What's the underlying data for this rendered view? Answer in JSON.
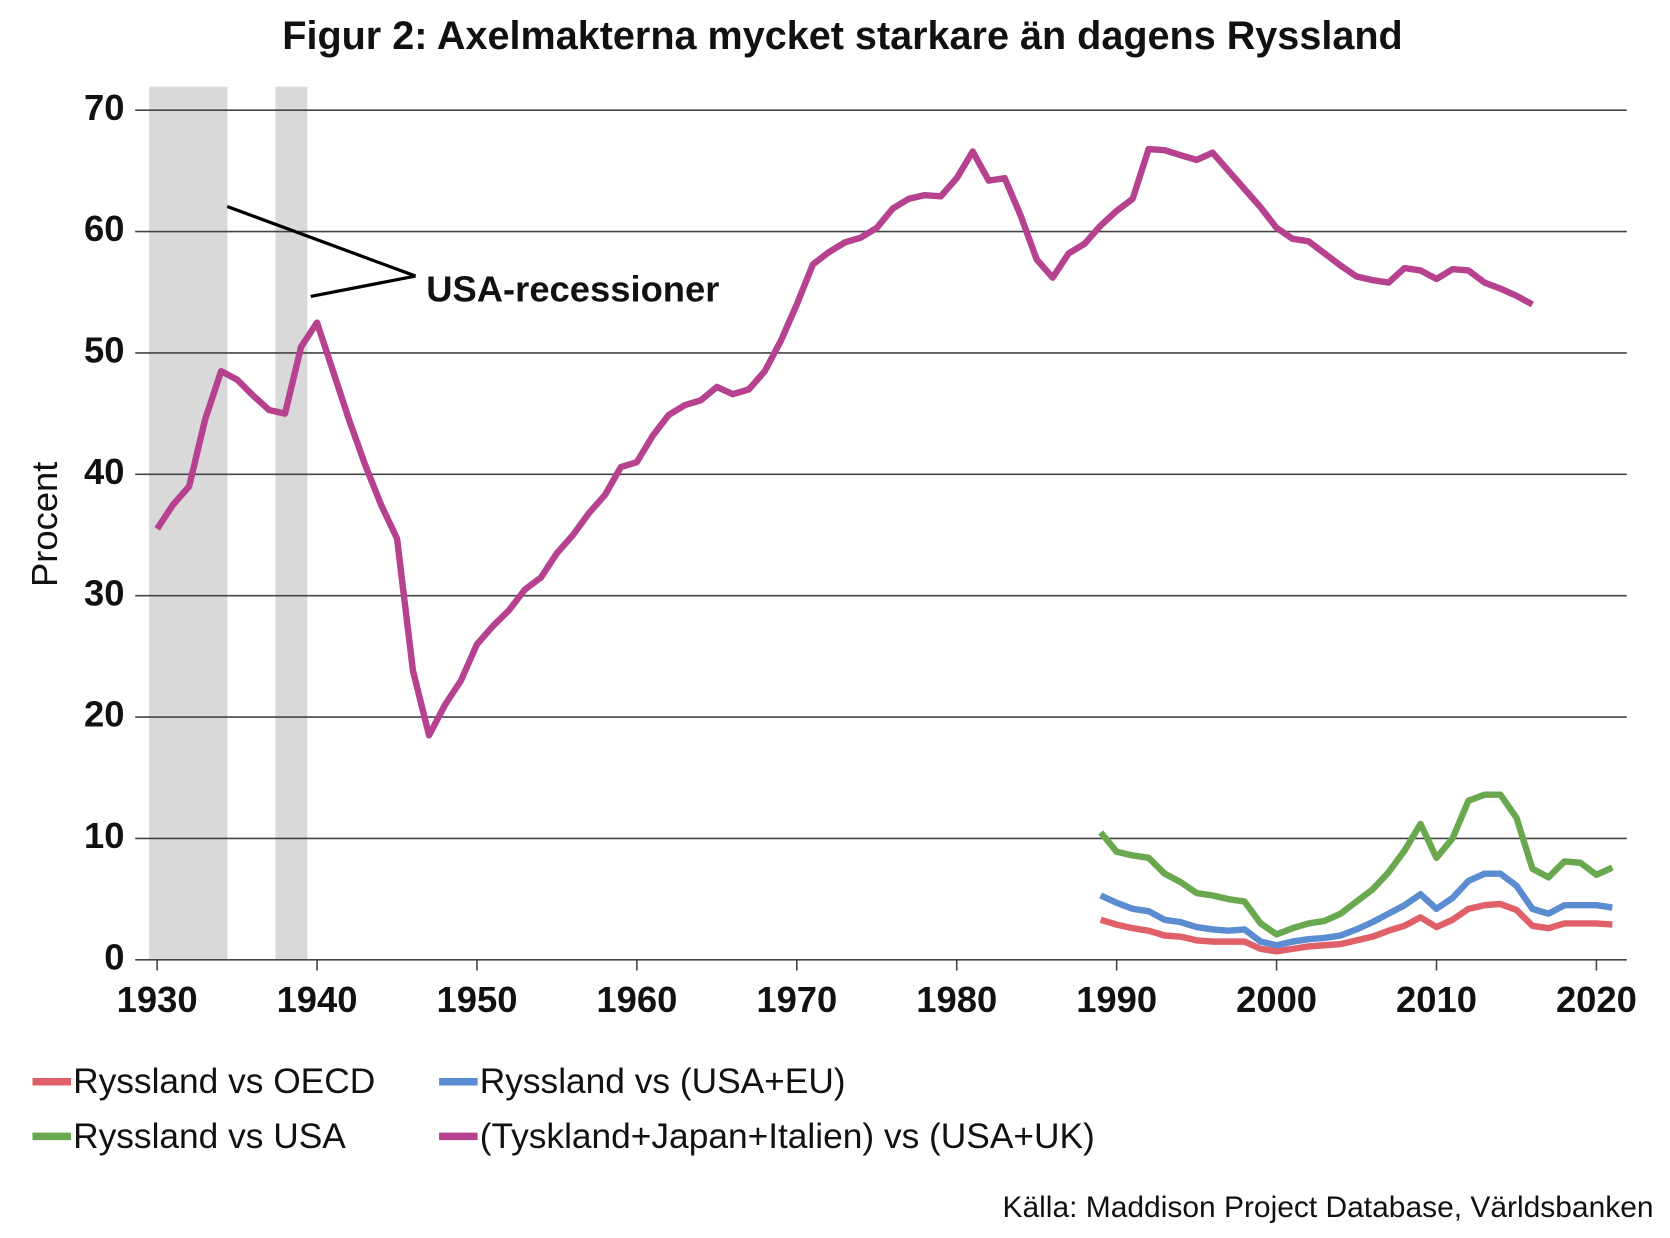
{
  "chart_data": {
    "type": "line",
    "title": "Figur 2: Axelmakterna mycket starkare än dagens Ryssland",
    "y_label": "Procent",
    "annotation": "USA-recessioner",
    "source": "Källa: Maddison Project Database, Världsbanken",
    "xlim": [
      1929.5,
      2021.9
    ],
    "ylim": [
      0,
      70
    ],
    "xticks": [
      1930,
      1940,
      1950,
      1960,
      1970,
      1980,
      1990,
      2000,
      2010,
      2020
    ],
    "yticks": [
      0,
      10,
      20,
      30,
      40,
      50,
      60,
      70
    ],
    "grid": true,
    "shaded_spans": [
      [
        1929.5,
        1934.4
      ],
      [
        1937.4,
        1939.4
      ]
    ],
    "series": [
      {
        "name": "Ryssland vs OECD",
        "color": "#e0606a",
        "x": [
          1989,
          1990,
          1991,
          1992,
          1993,
          1994,
          1995,
          1996,
          1997,
          1998,
          1999,
          2000,
          2001,
          2002,
          2003,
          2004,
          2005,
          2006,
          2007,
          2008,
          2009,
          2010,
          2011,
          2012,
          2013,
          2014,
          2015,
          2016,
          2017,
          2018,
          2019,
          2020,
          2021
        ],
        "values": [
          3.3,
          2.9,
          2.6,
          2.4,
          2.0,
          1.9,
          1.6,
          1.5,
          1.5,
          1.5,
          0.9,
          0.7,
          0.9,
          1.1,
          1.2,
          1.3,
          1.6,
          1.9,
          2.4,
          2.8,
          3.5,
          2.7,
          3.3,
          4.2,
          4.5,
          4.6,
          4.1,
          2.8,
          2.6,
          3.0,
          3.0,
          3.0,
          2.9
        ]
      },
      {
        "name": "Ryssland vs (USA+EU)",
        "color": "#5b8bd0",
        "x": [
          1989,
          1990,
          1991,
          1992,
          1993,
          1994,
          1995,
          1996,
          1997,
          1998,
          1999,
          2000,
          2001,
          2002,
          2003,
          2004,
          2005,
          2006,
          2007,
          2008,
          2009,
          2010,
          2011,
          2012,
          2013,
          2014,
          2015,
          2016,
          2017,
          2018,
          2019,
          2020,
          2021
        ],
        "values": [
          5.3,
          4.7,
          4.2,
          4.0,
          3.3,
          3.1,
          2.7,
          2.5,
          2.4,
          2.5,
          1.5,
          1.2,
          1.5,
          1.7,
          1.8,
          2.0,
          2.5,
          3.1,
          3.8,
          4.5,
          5.4,
          4.2,
          5.1,
          6.5,
          7.1,
          7.1,
          6.1,
          4.2,
          3.8,
          4.5,
          4.5,
          4.5,
          4.3
        ]
      },
      {
        "name": "Ryssland vs USA",
        "color": "#6aa84f",
        "x": [
          1989,
          1990,
          1991,
          1992,
          1993,
          1994,
          1995,
          1996,
          1997,
          1998,
          1999,
          2000,
          2001,
          2002,
          2003,
          2004,
          2005,
          2006,
          2007,
          2008,
          2009,
          2010,
          2011,
          2012,
          2013,
          2014,
          2015,
          2016,
          2017,
          2018,
          2019,
          2020,
          2021
        ],
        "values": [
          10.5,
          8.9,
          8.6,
          8.4,
          7.1,
          6.4,
          5.5,
          5.3,
          5.0,
          4.8,
          3.0,
          2.1,
          2.6,
          3.0,
          3.2,
          3.8,
          4.8,
          5.8,
          7.2,
          9.0,
          11.2,
          8.4,
          10.0,
          13.1,
          13.6,
          13.6,
          11.7,
          7.5,
          6.8,
          8.1,
          8.0,
          7.0,
          7.6
        ]
      },
      {
        "name": "(Tyskland+Japan+Italien) vs (USA+UK)",
        "color": "#b5418f",
        "x": [
          1930,
          1931,
          1932,
          1933,
          1934,
          1935,
          1936,
          1937,
          1938,
          1939,
          1940,
          1941,
          1942,
          1943,
          1944,
          1945,
          1946,
          1947,
          1948,
          1949,
          1950,
          1951,
          1952,
          1953,
          1954,
          1955,
          1956,
          1957,
          1958,
          1959,
          1960,
          1961,
          1962,
          1963,
          1964,
          1965,
          1966,
          1967,
          1968,
          1969,
          1970,
          1971,
          1972,
          1973,
          1974,
          1975,
          1976,
          1977,
          1978,
          1979,
          1980,
          1981,
          1982,
          1983,
          1984,
          1985,
          1986,
          1987,
          1988,
          1989,
          1990,
          1991,
          1992,
          1993,
          1994,
          1995,
          1996,
          1997,
          1998,
          1999,
          2000,
          2001,
          2002,
          2003,
          2004,
          2005,
          2006,
          2007,
          2008,
          2009,
          2010,
          2011,
          2012,
          2013,
          2014,
          2015,
          2016
        ],
        "values": [
          35.5,
          37.5,
          39,
          44.5,
          48.5,
          47.8,
          46.5,
          45.3,
          45,
          50.5,
          52.5,
          48.5,
          44.5,
          40.8,
          37.5,
          34.7,
          23.8,
          18.5,
          21,
          23,
          26,
          27.5,
          28.8,
          30.5,
          31.5,
          33.5,
          35,
          36.8,
          38.3,
          40.6,
          41,
          43.2,
          44.9,
          45.7,
          46.1,
          47.2,
          46.6,
          47,
          48.5,
          51,
          54,
          57.3,
          58.3,
          59.1,
          59.5,
          60.3,
          61.9,
          62.7,
          63,
          62.9,
          64.4,
          66.6,
          64.2,
          64.4,
          61.3,
          57.7,
          56.2,
          58.2,
          59,
          60.5,
          61.7,
          62.7,
          66.8,
          66.7,
          66.3,
          65.9,
          66.5,
          65,
          63.5,
          62,
          60.3,
          59.4,
          59.2,
          58.2,
          57.2,
          56.3,
          56,
          55.8,
          57,
          56.8,
          56.1,
          56.9,
          56.8,
          55.8,
          55.3,
          54.7,
          54
        ]
      }
    ]
  }
}
